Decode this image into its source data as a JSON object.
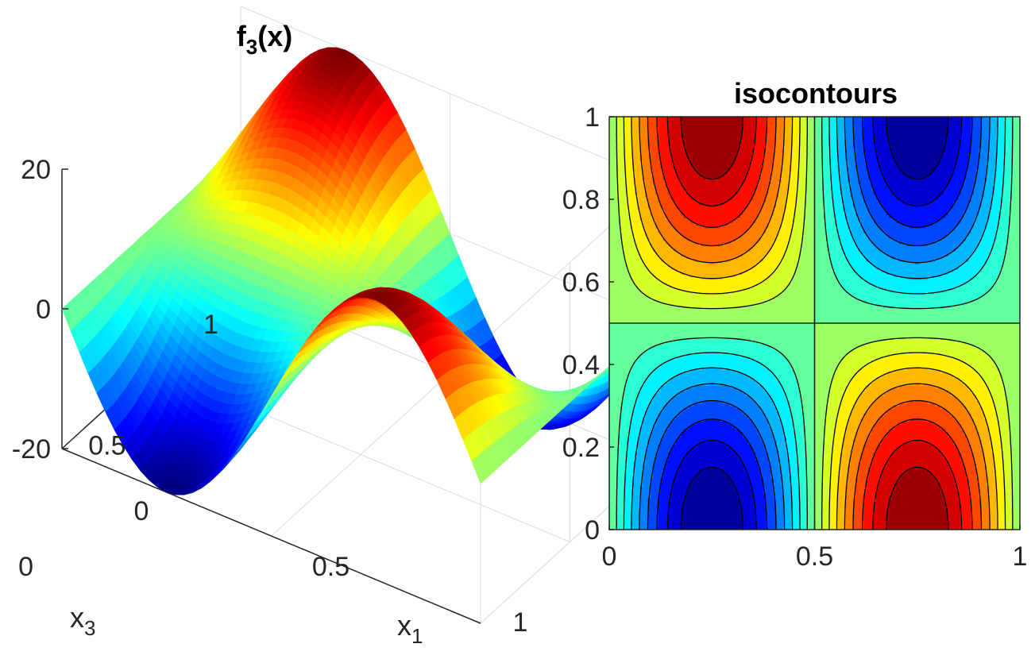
{
  "chart_data": [
    {
      "type": "surface",
      "title": "f",
      "title_subscript": "3",
      "title_suffix": "(x)",
      "xlabel": "x",
      "xlabel_subscript": "1",
      "ylabel": "x",
      "ylabel_subscript": "3",
      "xlim": [
        0,
        1
      ],
      "ylim": [
        0,
        1
      ],
      "zlim": [
        -20,
        20
      ],
      "x_ticks": [
        "0",
        "0.5",
        "1"
      ],
      "y_ticks": [
        "0",
        "0.5",
        "1"
      ],
      "z_ticks": [
        "20",
        "0",
        "-20"
      ],
      "grid": true,
      "colormap": "jet",
      "function": "-20*sin(2*pi*x1)*cos(pi*x3)",
      "peak_value": 20,
      "trough_value": -20
    },
    {
      "type": "contour",
      "title": "isocontours",
      "xlim": [
        0,
        1
      ],
      "ylim": [
        0,
        1
      ],
      "x_ticks": [
        "0",
        "0.5",
        "1"
      ],
      "y_ticks": [
        "0",
        "0.2",
        "0.4",
        "0.6",
        "0.8",
        "1"
      ],
      "levels": [
        -20,
        -17.78,
        -15.56,
        -13.33,
        -11.11,
        -8.89,
        -6.67,
        -4.44,
        -2.22,
        0,
        2.22,
        4.44,
        6.67,
        8.89,
        11.11,
        13.33,
        15.56,
        17.78,
        20
      ],
      "colormap": "jet",
      "function": "-20*sin(2*pi*x)*cos(pi*y)"
    }
  ]
}
